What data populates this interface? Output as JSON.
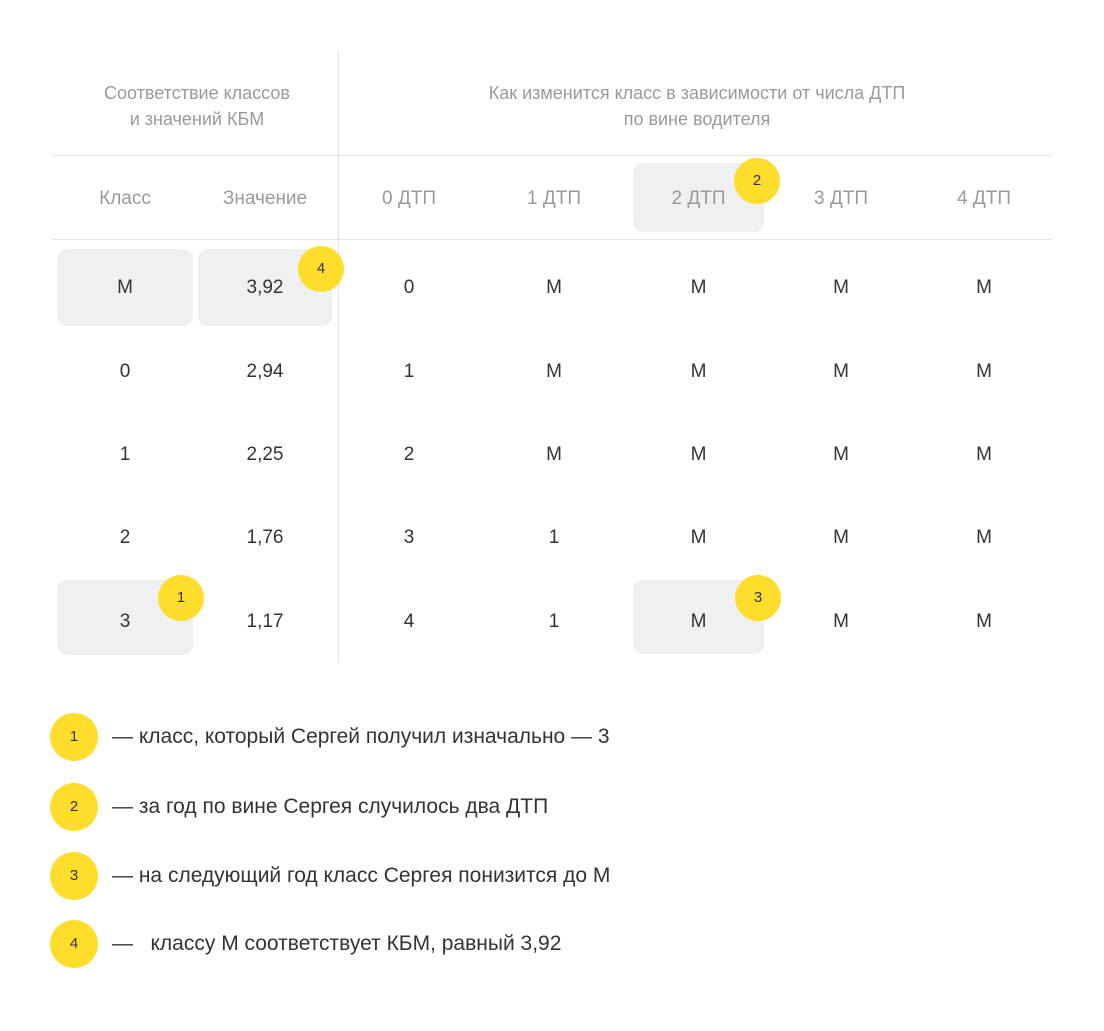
{
  "header": {
    "left_line1": "Соответствие классов",
    "left_line2": "и значений КБМ",
    "right_line1": "Как изменится класс в зависимости от числа ДТП",
    "right_line2": "по вине водителя"
  },
  "columns": [
    "Класс",
    "Значение",
    "0 ДТП",
    "1 ДТП",
    "2 ДТП",
    "3 ДТП",
    "4 ДТП"
  ],
  "rows": [
    [
      "М",
      "3,92",
      "0",
      "М",
      "М",
      "М",
      "М"
    ],
    [
      "0",
      "2,94",
      "1",
      "М",
      "М",
      "М",
      "М"
    ],
    [
      "1",
      "2,25",
      "2",
      "М",
      "М",
      "М",
      "М"
    ],
    [
      "2",
      "1,76",
      "3",
      "1",
      "М",
      "М",
      "М"
    ],
    [
      "3",
      "1,17",
      "4",
      "1",
      "М",
      "М",
      "М"
    ]
  ],
  "badges": [
    "1",
    "2",
    "3",
    "4"
  ],
  "legend": [
    {
      "num": "1",
      "text": "— класс, который Сергей получил изначально — 3"
    },
    {
      "num": "2",
      "text": "— за год по вине Сергея случилось два ДТП"
    },
    {
      "num": "3",
      "text": "— на следующий год класс Сергея понизится до М"
    },
    {
      "num": "4",
      "text": "—   классу М соответствует КБМ, равный 3,92"
    }
  ],
  "colors": {
    "accent": "#ffdd2d",
    "highlight": "#eef0f2",
    "muted_text": "#9a9a9a",
    "text": "#333333",
    "divider": "#e3e5e8"
  }
}
